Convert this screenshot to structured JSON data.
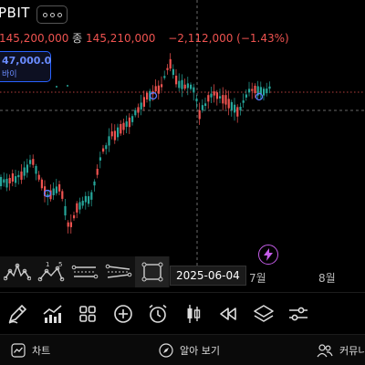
{
  "header": {
    "exchange_title": "PBIT",
    "more_button_icon": "more-dots-icon"
  },
  "ohlc": {
    "prev_price": "145,200,000",
    "close_label": "종",
    "close_price": "145,210,000",
    "change": "−2,112,000 (−1.43%)"
  },
  "order_box": {
    "price": "47,000.0",
    "tag": "바이"
  },
  "axis": {
    "crosshair_date": "2025-06-04",
    "month_july": "7월",
    "month_aug": "8월"
  },
  "colors": {
    "up": "#26a69a",
    "down": "#ef5350",
    "background": "#000000",
    "accent_blue": "#2962ff",
    "bolt": "#c45ce8"
  },
  "drawing_tools": [
    {
      "icon": "head-shoulders-pattern-icon"
    },
    {
      "icon": "elliott-wave-icon",
      "labels": [
        "1",
        "5"
      ]
    },
    {
      "icon": "parallel-channel-icon"
    },
    {
      "icon": "regression-channel-icon"
    },
    {
      "icon": "rectangle-icon"
    }
  ],
  "toolbar": [
    {
      "icon": "pencil-icon"
    },
    {
      "icon": "indicators-icon"
    },
    {
      "icon": "grid-icon"
    },
    {
      "icon": "add-circle-icon"
    },
    {
      "icon": "alarm-icon"
    },
    {
      "icon": "candlestick-icon"
    },
    {
      "icon": "rewind-icon"
    },
    {
      "icon": "layers-icon"
    },
    {
      "icon": "settings-sliders-icon"
    }
  ],
  "bottom_nav": {
    "chart_label": "차트",
    "explore_label": "알아 보기",
    "community_label": "커뮤니티"
  }
}
